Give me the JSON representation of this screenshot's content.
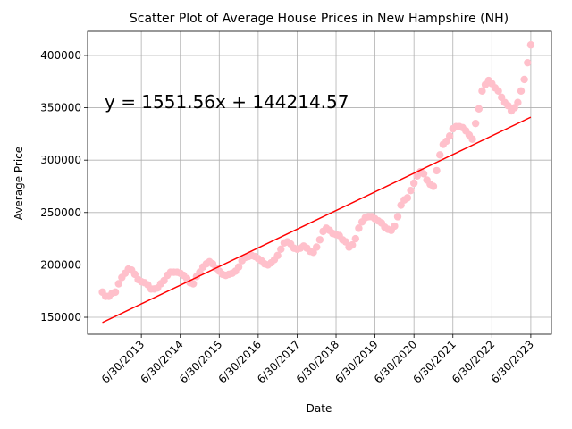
{
  "chart_data": {
    "type": "scatter",
    "title": "Scatter Plot of Average House Prices in New Hampshire (NH)",
    "xlabel": "Date",
    "ylabel": "Average Price",
    "annotation": "y = 1551.56x + 144214.57",
    "annotation_color": "#ff0000",
    "color": "#ffc0cb",
    "grid": true,
    "x": [
      2012.5,
      2012.583,
      2012.667,
      2012.75,
      2012.833,
      2012.917,
      2013,
      2013.083,
      2013.167,
      2013.25,
      2013.333,
      2013.417,
      2013.5,
      2013.583,
      2013.667,
      2013.75,
      2013.833,
      2013.917,
      2014,
      2014.083,
      2014.167,
      2014.25,
      2014.333,
      2014.417,
      2014.5,
      2014.583,
      2014.667,
      2014.75,
      2014.833,
      2014.917,
      2015,
      2015.083,
      2015.167,
      2015.25,
      2015.333,
      2015.417,
      2015.5,
      2015.583,
      2015.667,
      2015.75,
      2015.833,
      2015.917,
      2016,
      2016.083,
      2016.167,
      2016.25,
      2016.333,
      2016.417,
      2016.5,
      2016.583,
      2016.667,
      2016.75,
      2016.833,
      2016.917,
      2017,
      2017.083,
      2017.167,
      2017.25,
      2017.333,
      2017.417,
      2017.5,
      2017.583,
      2017.667,
      2017.75,
      2017.833,
      2017.917,
      2018,
      2018.083,
      2018.167,
      2018.25,
      2018.333,
      2018.417,
      2018.5,
      2018.583,
      2018.667,
      2018.75,
      2018.833,
      2018.917,
      2019,
      2019.083,
      2019.167,
      2019.25,
      2019.333,
      2019.417,
      2019.5,
      2019.583,
      2019.667,
      2019.75,
      2019.833,
      2019.917,
      2020,
      2020.083,
      2020.167,
      2020.25,
      2020.333,
      2020.417,
      2020.5,
      2020.583,
      2020.667,
      2020.75,
      2020.833,
      2020.917,
      2021,
      2021.083,
      2021.167,
      2021.25,
      2021.333,
      2021.417,
      2021.5,
      2021.583,
      2021.667,
      2021.75,
      2021.833,
      2021.917,
      2022,
      2022.083,
      2022.167,
      2022.25,
      2022.333,
      2022.417,
      2022.5,
      2022.583,
      2022.667,
      2022.75,
      2022.833,
      2022.917,
      2023,
      2023.083,
      2023.167,
      2023.25,
      2023.333,
      2023.417,
      2023.5
    ],
    "values": [
      174000,
      170000,
      170000,
      173000,
      174000,
      182000,
      188000,
      192000,
      196000,
      195000,
      191000,
      186000,
      184000,
      183000,
      181000,
      177000,
      177000,
      178000,
      182000,
      185000,
      190000,
      193000,
      193000,
      193000,
      192000,
      190000,
      187000,
      183000,
      182000,
      189000,
      193000,
      198000,
      201000,
      203000,
      201000,
      197000,
      194000,
      191000,
      190000,
      191000,
      192000,
      194000,
      198000,
      204000,
      207000,
      208000,
      209000,
      208000,
      206000,
      204000,
      201000,
      200000,
      202000,
      205000,
      209000,
      215000,
      221000,
      222000,
      220000,
      216000,
      215000,
      216000,
      218000,
      216000,
      213000,
      212000,
      217000,
      224000,
      232000,
      235000,
      233000,
      230000,
      229000,
      228000,
      224000,
      222000,
      217000,
      219000,
      225000,
      235000,
      241000,
      245000,
      246000,
      246000,
      244000,
      242000,
      240000,
      236000,
      234000,
      233000,
      237000,
      246000,
      257000,
      262000,
      264000,
      271000,
      278000,
      285000,
      289000,
      287000,
      281000,
      277000,
      275000,
      290000,
      305000,
      315000,
      318000,
      323000,
      330000,
      332000,
      332000,
      331000,
      328000,
      324000,
      320000,
      335000,
      349000,
      366000,
      372000,
      376000,
      373000,
      369000,
      366000,
      360000,
      355000,
      352000,
      347000,
      350000,
      355000,
      366000,
      377000,
      393000,
      410000
    ],
    "trendline": {
      "x": [
        2012.5,
        2023.5
      ],
      "values": [
        145000,
        341000
      ],
      "color": "#ff0000"
    },
    "xlim": [
      2012.12,
      2024.03
    ],
    "ylim": [
      133800,
      423000
    ],
    "xticks": [
      {
        "value": 2013.5,
        "label": "6/30/2013"
      },
      {
        "value": 2014.5,
        "label": "6/30/2014"
      },
      {
        "value": 2015.5,
        "label": "6/30/2015"
      },
      {
        "value": 2016.5,
        "label": "6/30/2016"
      },
      {
        "value": 2017.5,
        "label": "6/30/2017"
      },
      {
        "value": 2018.5,
        "label": "6/30/2018"
      },
      {
        "value": 2019.5,
        "label": "6/30/2019"
      },
      {
        "value": 2020.5,
        "label": "6/30/2020"
      },
      {
        "value": 2021.5,
        "label": "6/30/2021"
      },
      {
        "value": 2022.5,
        "label": "6/30/2022"
      },
      {
        "value": 2023.5,
        "label": "6/30/2023"
      }
    ],
    "yticks": [
      150000,
      200000,
      250000,
      300000,
      350000,
      400000
    ]
  }
}
